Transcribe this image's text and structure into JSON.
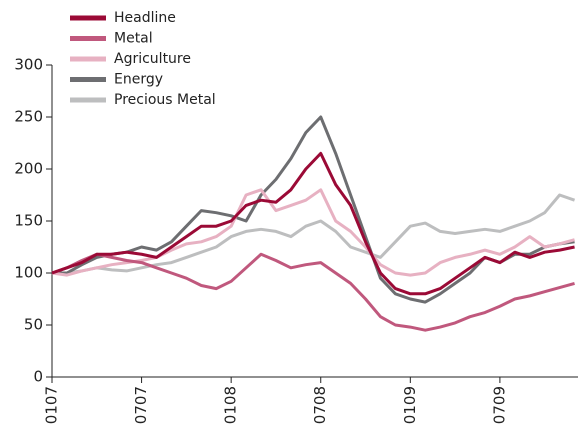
{
  "chart_data": {
    "type": "line",
    "categories": [
      "0107",
      null,
      null,
      null,
      null,
      null,
      "0707",
      null,
      null,
      null,
      null,
      null,
      "0108",
      null,
      null,
      null,
      null,
      null,
      "0708",
      null,
      null,
      null,
      null,
      null,
      "0109",
      null,
      null,
      null,
      null,
      null,
      "0709",
      null,
      null,
      null,
      null,
      null
    ],
    "series": [
      {
        "name": "Headline",
        "color": "#9b0a36",
        "values": [
          100,
          105,
          110,
          118,
          118,
          120,
          118,
          115,
          125,
          135,
          145,
          145,
          150,
          165,
          170,
          168,
          180,
          200,
          215,
          185,
          165,
          130,
          100,
          85,
          80,
          80,
          85,
          95,
          105,
          115,
          110,
          120,
          115,
          120,
          122,
          125
        ]
      },
      {
        "name": "Metal",
        "color": "#c0587d",
        "values": [
          100,
          105,
          112,
          118,
          115,
          112,
          110,
          105,
          100,
          95,
          88,
          85,
          92,
          105,
          118,
          112,
          105,
          108,
          110,
          100,
          90,
          75,
          58,
          50,
          48,
          45,
          48,
          52,
          58,
          62,
          68,
          75,
          78,
          82,
          86,
          90
        ]
      },
      {
        "name": "Agriculture",
        "color": "#e7b1c2",
        "values": [
          100,
          98,
          102,
          105,
          108,
          110,
          112,
          115,
          122,
          128,
          130,
          135,
          145,
          175,
          180,
          160,
          165,
          170,
          180,
          150,
          140,
          125,
          108,
          100,
          98,
          100,
          110,
          115,
          118,
          122,
          118,
          125,
          135,
          125,
          128,
          132
        ]
      },
      {
        "name": "Energy",
        "color": "#6d6e71",
        "values": [
          100,
          100,
          108,
          115,
          118,
          120,
          125,
          122,
          130,
          145,
          160,
          158,
          155,
          150,
          175,
          190,
          210,
          235,
          250,
          215,
          175,
          135,
          95,
          80,
          75,
          72,
          80,
          90,
          100,
          115,
          110,
          118,
          118,
          125,
          128,
          130
        ]
      },
      {
        "name": "Precious Metal",
        "color": "#bdbebf",
        "values": [
          100,
          100,
          102,
          105,
          103,
          102,
          105,
          108,
          110,
          115,
          120,
          125,
          135,
          140,
          142,
          140,
          135,
          145,
          150,
          140,
          125,
          120,
          115,
          130,
          145,
          148,
          140,
          138,
          140,
          142,
          140,
          145,
          150,
          158,
          175,
          170
        ]
      }
    ],
    "ylim": [
      0,
      300
    ],
    "yticks": [
      0,
      50,
      100,
      150,
      200,
      250,
      300
    ],
    "grid": false
  }
}
